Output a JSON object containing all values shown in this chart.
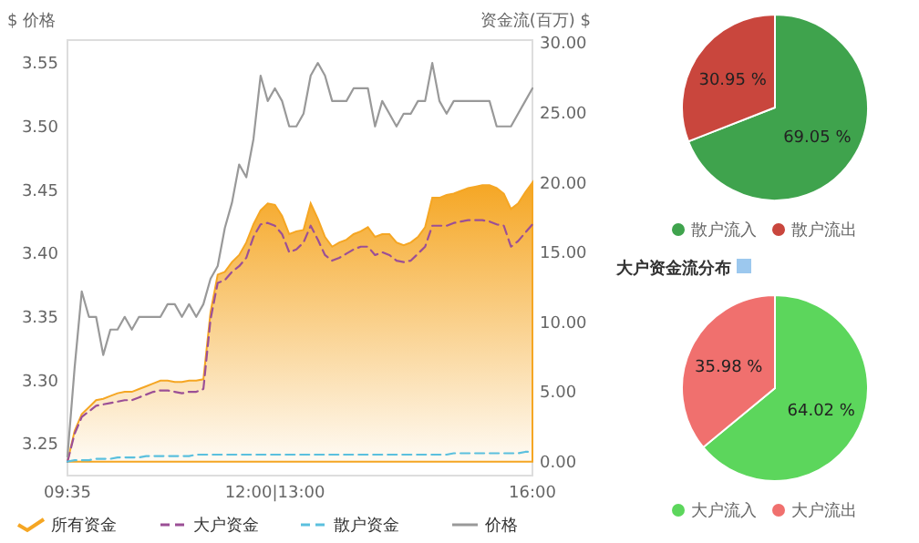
{
  "chart_data": [
    {
      "type": "line",
      "ylabel": "$ 价格",
      "y2label": "资金流(百万) $",
      "categories": [
        "09:35",
        null,
        null,
        null,
        null,
        null,
        null,
        null,
        null,
        null,
        null,
        null,
        null,
        null,
        null,
        null,
        null,
        null,
        null,
        null,
        null,
        null,
        null,
        null,
        null,
        null,
        null,
        null,
        null,
        "12:00|13:00",
        null,
        null,
        null,
        null,
        null,
        null,
        null,
        null,
        null,
        null,
        null,
        null,
        null,
        null,
        null,
        null,
        null,
        null,
        null,
        null,
        null,
        null,
        null,
        null,
        null,
        null,
        null,
        null,
        null,
        null,
        null,
        null,
        null,
        null,
        null,
        "16:00"
      ],
      "ylim": [
        3.225,
        3.568
      ],
      "yticks": [
        3.25,
        {
          "value": 3.3,
          "label": "3.30"
        },
        3.35,
        {
          "value": 3.4,
          "label": "3.40"
        },
        3.45,
        {
          "value": 3.5,
          "label": "3.50"
        },
        3.55
      ],
      "y2lim": [
        -1,
        30.2
      ],
      "y2ticks": [
        {
          "value": 0,
          "label": "0.00"
        },
        {
          "value": 5,
          "label": "5.00"
        },
        {
          "value": 10,
          "label": "10.00"
        },
        {
          "value": 15,
          "label": "15.00"
        },
        {
          "value": 20,
          "label": "20.00"
        },
        {
          "value": 25,
          "label": "25.00"
        },
        {
          "value": 30,
          "label": "30.00"
        }
      ],
      "legend": "bottom",
      "series": [
        {
          "name": "所有资金",
          "type": "area",
          "axis": "y2",
          "color": "#f5a623",
          "values": [
            0,
            2.2,
            3.4,
            3.9,
            4.4,
            4.5,
            4.7,
            4.9,
            5.0,
            5.0,
            5.2,
            5.4,
            5.6,
            5.8,
            5.8,
            5.7,
            5.7,
            5.8,
            5.8,
            5.9,
            10.7,
            13.4,
            13.6,
            14.3,
            14.8,
            15.7,
            17.0,
            18.0,
            18.5,
            18.4,
            17.6,
            16.3,
            16.5,
            16.6,
            18.5,
            17.4,
            16.1,
            15.4,
            15.7,
            15.9,
            16.3,
            16.5,
            16.8,
            16.1,
            16.3,
            16.3,
            15.7,
            15.5,
            15.7,
            16.1,
            16.8,
            18.9,
            18.9,
            19.1,
            19.2,
            19.4,
            19.6,
            19.7,
            19.8,
            19.8,
            19.6,
            19.2,
            18.1,
            18.5,
            19.3,
            20.0
          ]
        },
        {
          "name": "大户资金",
          "type": "line",
          "axis": "y2",
          "line_style": "dashed",
          "color": "#9b4f96",
          "values": [
            0,
            2.0,
            3.2,
            3.6,
            4.0,
            4.1,
            4.2,
            4.3,
            4.4,
            4.4,
            4.6,
            4.8,
            5.0,
            5.1,
            5.1,
            5.0,
            4.9,
            5.0,
            5.0,
            5.2,
            10.2,
            12.8,
            13.0,
            13.6,
            14.0,
            14.6,
            16.1,
            17.0,
            17.1,
            16.9,
            16.3,
            15.0,
            15.2,
            15.7,
            16.9,
            15.9,
            14.8,
            14.4,
            14.6,
            14.9,
            15.2,
            15.4,
            15.4,
            14.8,
            15.0,
            14.8,
            14.4,
            14.3,
            14.4,
            14.9,
            15.4,
            16.9,
            16.9,
            16.9,
            17.1,
            17.2,
            17.3,
            17.3,
            17.3,
            17.2,
            17.0,
            16.9,
            15.4,
            15.8,
            16.4,
            17.0
          ]
        },
        {
          "name": "散户资金",
          "type": "line",
          "axis": "y2",
          "line_style": "dashed",
          "color": "#5bc0de",
          "values": [
            0.0,
            0.1,
            0.1,
            0.1,
            0.2,
            0.2,
            0.2,
            0.3,
            0.3,
            0.3,
            0.3,
            0.4,
            0.4,
            0.4,
            0.4,
            0.4,
            0.4,
            0.4,
            0.5,
            0.5,
            0.5,
            0.5,
            0.5,
            0.5,
            0.5,
            0.5,
            0.5,
            0.5,
            0.5,
            0.5,
            0.5,
            0.5,
            0.5,
            0.5,
            0.5,
            0.5,
            0.5,
            0.5,
            0.5,
            0.5,
            0.5,
            0.5,
            0.5,
            0.5,
            0.5,
            0.5,
            0.5,
            0.5,
            0.5,
            0.5,
            0.5,
            0.5,
            0.5,
            0.5,
            0.6,
            0.6,
            0.6,
            0.6,
            0.6,
            0.6,
            0.6,
            0.6,
            0.6,
            0.6,
            0.7,
            0.7
          ]
        },
        {
          "name": "价格",
          "type": "line",
          "axis": "y",
          "line_style": "solid",
          "color": "#999999",
          "values": [
            3.24,
            3.31,
            3.37,
            3.35,
            3.35,
            3.32,
            3.34,
            3.34,
            3.35,
            3.34,
            3.35,
            3.35,
            3.35,
            3.35,
            3.36,
            3.36,
            3.35,
            3.36,
            3.35,
            3.36,
            3.38,
            3.39,
            3.42,
            3.44,
            3.47,
            3.46,
            3.49,
            3.54,
            3.52,
            3.53,
            3.52,
            3.5,
            3.5,
            3.51,
            3.54,
            3.55,
            3.54,
            3.52,
            3.52,
            3.52,
            3.53,
            3.53,
            3.53,
            3.5,
            3.52,
            3.51,
            3.5,
            3.51,
            3.51,
            3.52,
            3.52,
            3.55,
            3.52,
            3.51,
            3.52,
            3.52,
            3.52,
            3.52,
            3.52,
            3.52,
            3.5,
            3.5,
            3.5,
            3.51,
            3.52,
            3.53
          ]
        }
      ]
    },
    {
      "type": "pie",
      "categories": [
        "散户流入",
        "散户流出"
      ],
      "values": [
        69.05,
        30.95
      ],
      "colors": [
        "#3fa34d",
        "#c9463d"
      ],
      "value_labels": [
        "69.05 %",
        "30.95 %"
      ],
      "legend": "bottom"
    },
    {
      "type": "pie",
      "title": "大户资金流分布",
      "categories": [
        "大户流入",
        "大户流出"
      ],
      "values": [
        64.02,
        35.98
      ],
      "colors": [
        "#5cd65c",
        "#f0706e"
      ],
      "value_labels": [
        "64.02 %",
        "35.98 %"
      ],
      "legend": "bottom"
    }
  ]
}
